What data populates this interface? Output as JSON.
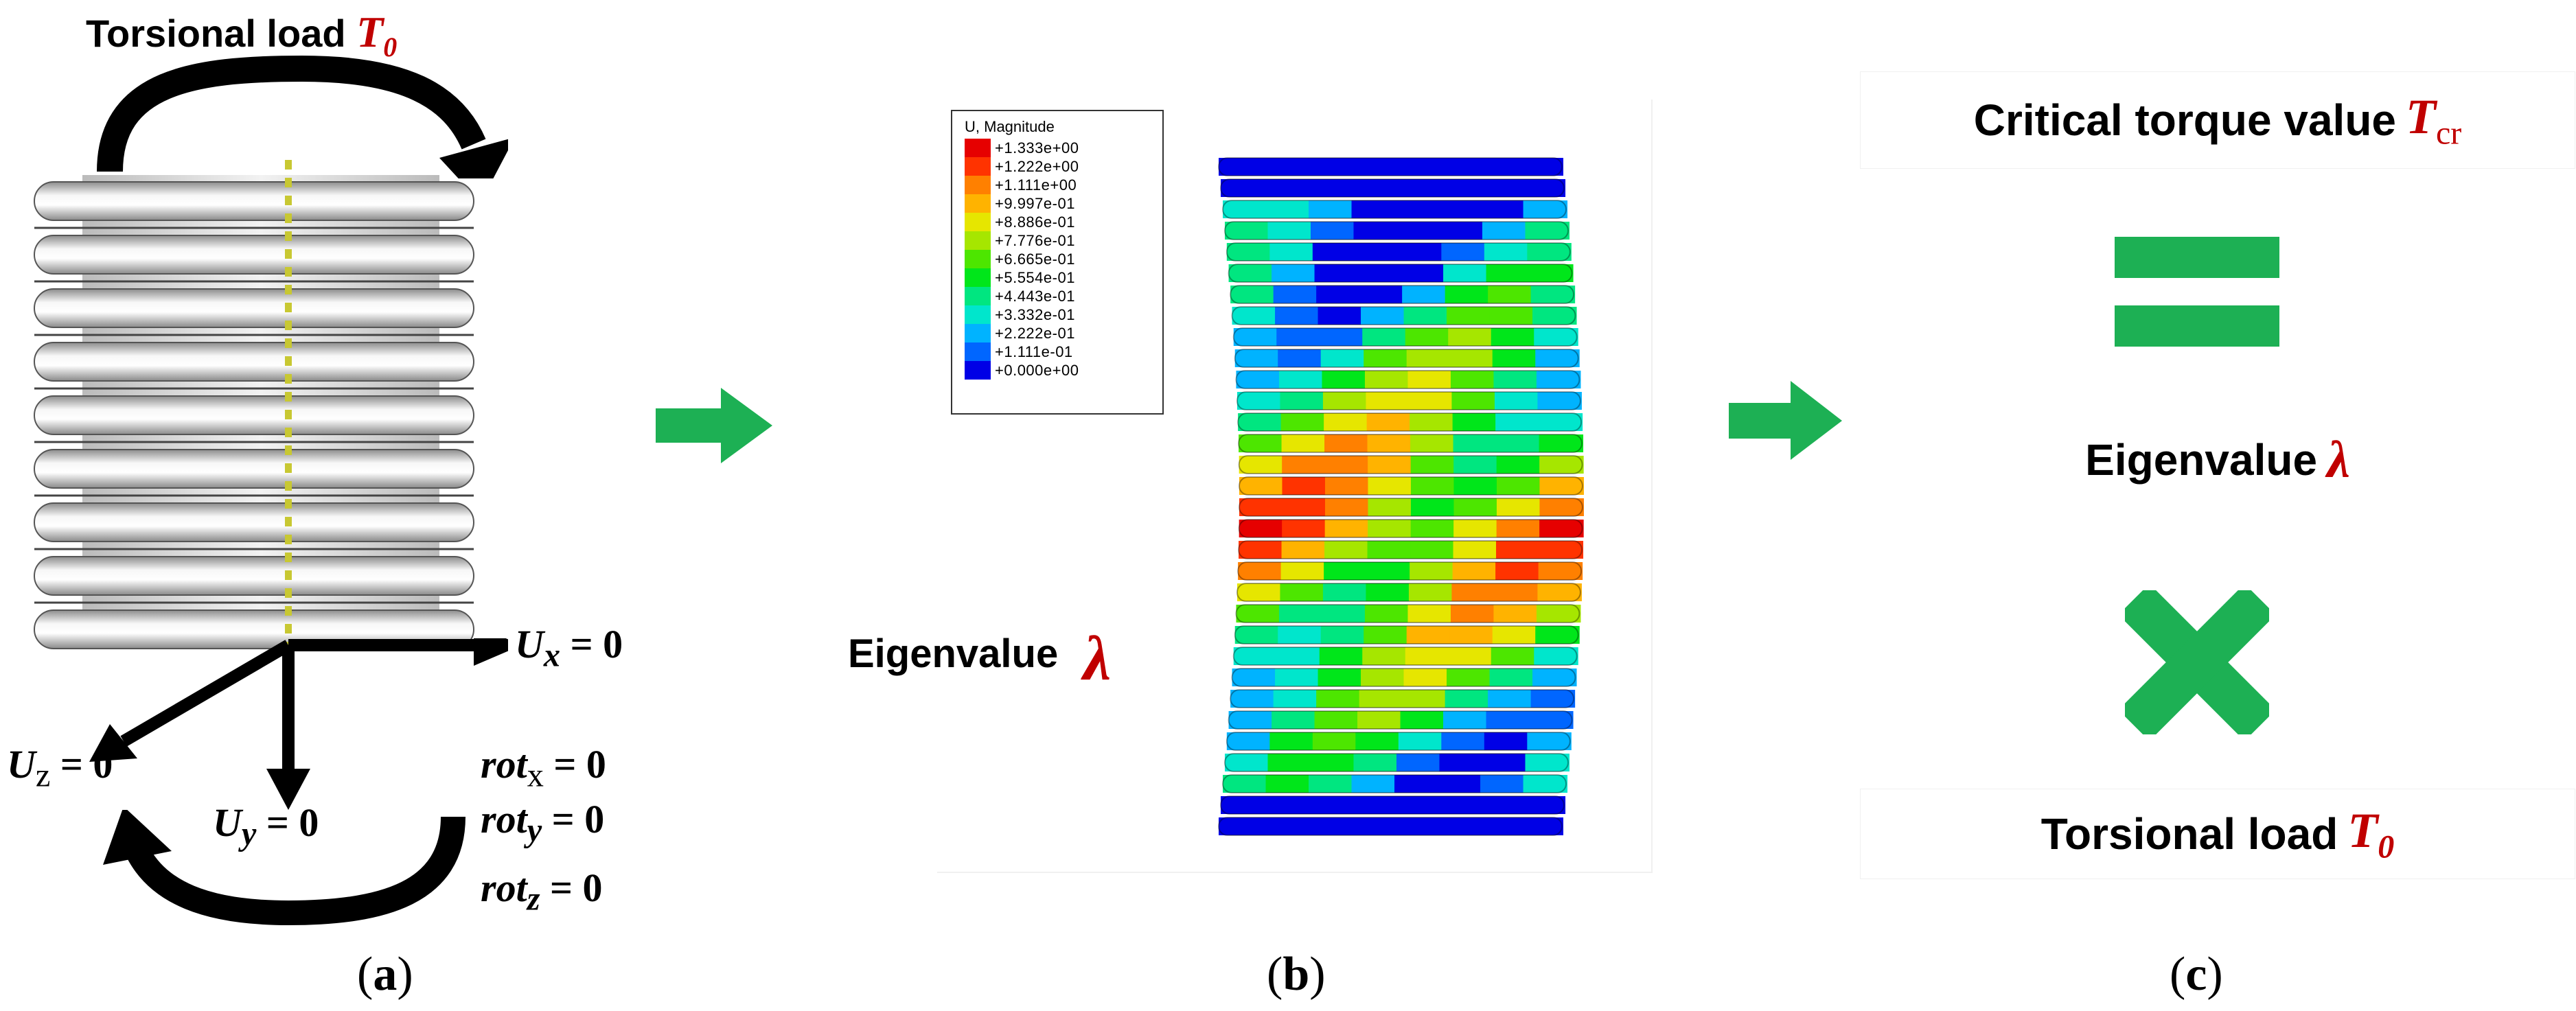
{
  "panel_a": {
    "title_text": "Torsional load ",
    "title_symbol": "T",
    "title_sub": "0",
    "ux_label": "U",
    "ux_sub": "x",
    "ux_rhs": " = 0",
    "uz_label": "U",
    "uz_sub": "z",
    "uz_rhs": " = 0",
    "uy_label": "U",
    "uy_sub": "y",
    "uy_rhs": " = 0",
    "rotx_label": "rot",
    "rotx_sub": "x",
    "rotx_rhs": " = 0",
    "roty_label": "rot",
    "roty_sub": "y",
    "roty_rhs": " = 0",
    "rotz_label": "rot",
    "rotz_sub": "z",
    "rotz_rhs": " = 0",
    "caption_letter": "a"
  },
  "panel_b": {
    "legend_title": "U, Magnitude",
    "legend": [
      {
        "value": "+1.333e+00",
        "color": "#e60000"
      },
      {
        "value": "+1.222e+00",
        "color": "#ff3300"
      },
      {
        "value": "+1.111e+00",
        "color": "#ff8000"
      },
      {
        "value": "+9.997e-01",
        "color": "#ffb300"
      },
      {
        "value": "+8.886e-01",
        "color": "#e6e600"
      },
      {
        "value": "+7.776e-01",
        "color": "#a6e600"
      },
      {
        "value": "+6.665e-01",
        "color": "#4de600"
      },
      {
        "value": "+5.554e-01",
        "color": "#00e61a"
      },
      {
        "value": "+4.443e-01",
        "color": "#00e680"
      },
      {
        "value": "+3.332e-01",
        "color": "#00e6cc"
      },
      {
        "value": "+2.222e-01",
        "color": "#00b3ff"
      },
      {
        "value": "+1.111e-01",
        "color": "#0066ff"
      },
      {
        "value": "+0.000e+00",
        "color": "#0000e6"
      }
    ],
    "eigen_text": "Eigenvalue",
    "eigen_symbol": "λ",
    "caption_letter": "b"
  },
  "panel_c": {
    "critical_text": "Critical torque value ",
    "critical_symbol": "T",
    "critical_sub": "cr",
    "eigen_text": "Eigenvalue ",
    "eigen_symbol": "λ",
    "torsional_text": "Torsional load ",
    "torsional_symbol": "T",
    "torsional_sub": "0",
    "caption_letter": "c"
  },
  "colors": {
    "accent_red": "#c00000",
    "arrow_green": "#1db054",
    "symbol_green": "#1db054"
  },
  "icons": [
    "curved-arrow-icon",
    "right-arrow-icon",
    "equals-icon",
    "multiply-icon"
  ]
}
